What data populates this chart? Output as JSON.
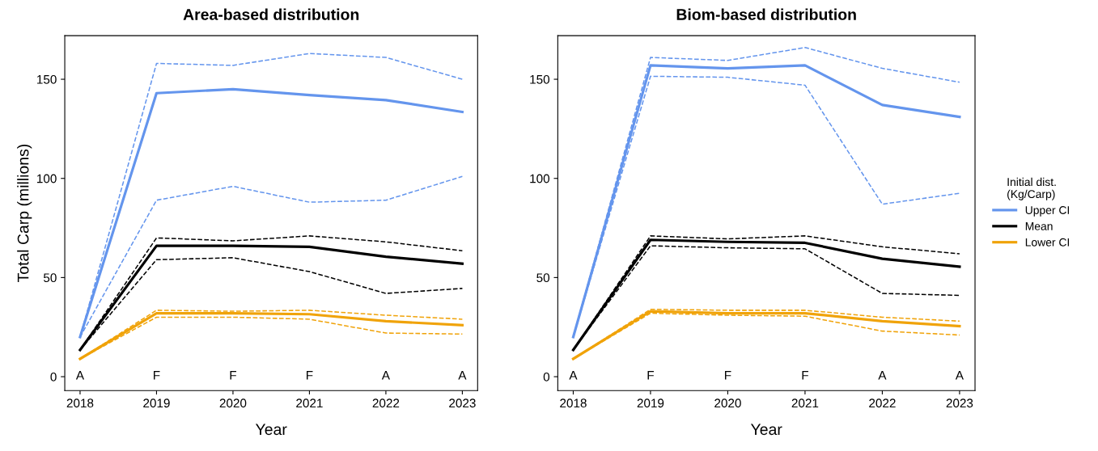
{
  "chart_data": [
    {
      "type": "line",
      "title": "Area-based distribution",
      "xlabel": "Year",
      "ylabel": "Total Carp (millions)",
      "x": [
        2018,
        2019,
        2020,
        2021,
        2022,
        2023
      ],
      "xlim": [
        2017.8,
        2023.2
      ],
      "xticks": [
        2018,
        2019,
        2020,
        2021,
        2022,
        2023
      ],
      "ylim": [
        -7,
        172
      ],
      "yticks": [
        0,
        50,
        100,
        150
      ],
      "grid": false,
      "legend": false,
      "marker": "none",
      "series": [
        {
          "color": "#6495ed",
          "line_style": "solid",
          "values": [
            20,
            143,
            145,
            142,
            139.5,
            133.5
          ]
        },
        {
          "color": "#6495ed",
          "line_style": "dashed",
          "values": [
            20,
            89,
            96,
            88,
            89,
            101
          ]
        },
        {
          "color": "#6495ed",
          "line_style": "dashed",
          "values": [
            20,
            158,
            157,
            163,
            161,
            150
          ]
        },
        {
          "color": "#000000",
          "line_style": "solid",
          "values": [
            13.5,
            66,
            66,
            65.5,
            60.5,
            57
          ]
        },
        {
          "color": "#000000",
          "line_style": "dashed",
          "values": [
            13.5,
            59,
            60,
            53,
            42,
            44.5
          ]
        },
        {
          "color": "#000000",
          "line_style": "dashed",
          "values": [
            13.5,
            70,
            68.5,
            71,
            68,
            63.5
          ]
        },
        {
          "color": "#f0a30a",
          "line_style": "solid",
          "values": [
            9,
            32,
            32,
            31.5,
            28,
            26
          ]
        },
        {
          "color": "#f0a30a",
          "line_style": "dashed",
          "values": [
            9,
            30,
            30,
            29,
            22,
            21.5
          ]
        },
        {
          "color": "#f0a30a",
          "line_style": "dashed",
          "values": [
            9,
            33.5,
            33,
            33.5,
            31,
            29
          ]
        }
      ],
      "annotations": [
        "A",
        "F",
        "F",
        "F",
        "A",
        "A"
      ]
    },
    {
      "type": "line",
      "title": "Biom-based distribution",
      "xlabel": "Year",
      "legend_title": "Initial dist.\n(Kg/Carp)",
      "x": [
        2018,
        2019,
        2020,
        2021,
        2022,
        2023
      ],
      "xlim": [
        2017.8,
        2023.2
      ],
      "xticks": [
        2018,
        2019,
        2020,
        2021,
        2022,
        2023
      ],
      "ylim": [
        -7,
        172
      ],
      "yticks": [
        0,
        50,
        100,
        150
      ],
      "grid": false,
      "legend": "right",
      "marker": "none",
      "series": [
        {
          "name": "Upper CI",
          "color": "#6495ed",
          "line_style": "solid",
          "values": [
            20,
            157,
            155.5,
            157,
            137,
            131
          ]
        },
        {
          "color": "#6495ed",
          "line_style": "dashed",
          "values": [
            20,
            151.5,
            151,
            147,
            87,
            92.5
          ]
        },
        {
          "color": "#6495ed",
          "line_style": "dashed",
          "values": [
            20,
            161,
            159.5,
            166,
            155.5,
            148.5
          ]
        },
        {
          "name": "Mean",
          "color": "#000000",
          "line_style": "solid",
          "values": [
            13.5,
            69,
            68,
            67.5,
            59.5,
            55.5
          ]
        },
        {
          "color": "#000000",
          "line_style": "dashed",
          "values": [
            13.5,
            66,
            65,
            64.5,
            42,
            41
          ]
        },
        {
          "color": "#000000",
          "line_style": "dashed",
          "values": [
            13.5,
            71,
            69.5,
            71,
            65.5,
            62
          ]
        },
        {
          "name": "Lower CI",
          "color": "#f0a30a",
          "line_style": "solid",
          "values": [
            9,
            33,
            32,
            32,
            28,
            25.5
          ]
        },
        {
          "color": "#f0a30a",
          "line_style": "dashed",
          "values": [
            9,
            32,
            31,
            30.5,
            23,
            21
          ]
        },
        {
          "color": "#f0a30a",
          "line_style": "dashed",
          "values": [
            9,
            34,
            33.5,
            33.5,
            30,
            28
          ]
        }
      ],
      "annotations": [
        "A",
        "F",
        "F",
        "F",
        "A",
        "A"
      ]
    }
  ]
}
